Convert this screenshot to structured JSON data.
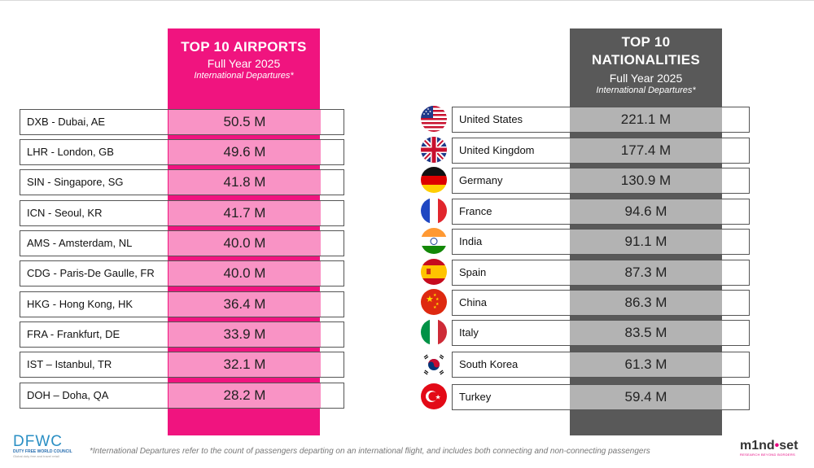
{
  "airports": {
    "title": "TOP 10 AIRPORTS",
    "period": "Full Year 2025",
    "metric": "International Departures*",
    "rows": [
      {
        "label": "DXB - Dubai, AE",
        "value": "50.5 M"
      },
      {
        "label": "LHR - London, GB",
        "value": "49.6 M"
      },
      {
        "label": "SIN - Singapore, SG",
        "value": "41.8 M"
      },
      {
        "label": "ICN - Seoul, KR",
        "value": "41.7 M"
      },
      {
        "label": "AMS - Amsterdam, NL",
        "value": "40.0 M"
      },
      {
        "label": "CDG - Paris-De Gaulle, FR",
        "value": "40.0 M"
      },
      {
        "label": "HKG - Hong Kong, HK",
        "value": "36.4 M"
      },
      {
        "label": "FRA - Frankfurt, DE",
        "value": "33.9 M"
      },
      {
        "label": "IST – Istanbul, TR",
        "value": "32.1 M"
      },
      {
        "label": "DOH  – Doha, QA",
        "value": "28.2 M"
      }
    ]
  },
  "nationalities": {
    "title_line1": "TOP 10",
    "title_line2": "NATIONALITIES",
    "period": "Full Year 2025",
    "metric": "International Departures*",
    "rows": [
      {
        "label": "United States",
        "value": "221.1 M",
        "flag": "flag-us"
      },
      {
        "label": "United Kingdom",
        "value": "177.4 M",
        "flag": "flag-gb"
      },
      {
        "label": "Germany",
        "value": "130.9 M",
        "flag": "flag-de"
      },
      {
        "label": "France",
        "value": "94.6 M",
        "flag": "flag-fr"
      },
      {
        "label": "India",
        "value": "91.1 M",
        "flag": "flag-in"
      },
      {
        "label": "Spain",
        "value": "87.3 M",
        "flag": "flag-es"
      },
      {
        "label": "China",
        "value": "86.3 M",
        "flag": "flag-cn"
      },
      {
        "label": "Italy",
        "value": "83.5 M",
        "flag": "flag-it"
      },
      {
        "label": "South Korea",
        "value": "61.3 M",
        "flag": "flag-kr"
      },
      {
        "label": "Turkey",
        "value": "59.4 M",
        "flag": "flag-tr"
      }
    ]
  },
  "footnote": "*International Departures refer to the count of passengers departing on an international flight, and includes both connecting and non-connecting passengers",
  "logos": {
    "dfwc_mark": "DFWC",
    "dfwc_name": "DUTY FREE WORLD COUNCIL",
    "dfwc_tagline": "Global duty free and travel retail",
    "mindset_prefix": "m1nd",
    "mindset_x": "•",
    "mindset_suffix": "set",
    "mindset_tagline": "RESEARCH BEYOND BORDERS"
  },
  "colors": {
    "airports_accent": "#f0147f",
    "airports_value_bg": "#f993c5",
    "nationalities_accent": "#595959",
    "nationalities_value_bg": "#b3b3b3"
  }
}
